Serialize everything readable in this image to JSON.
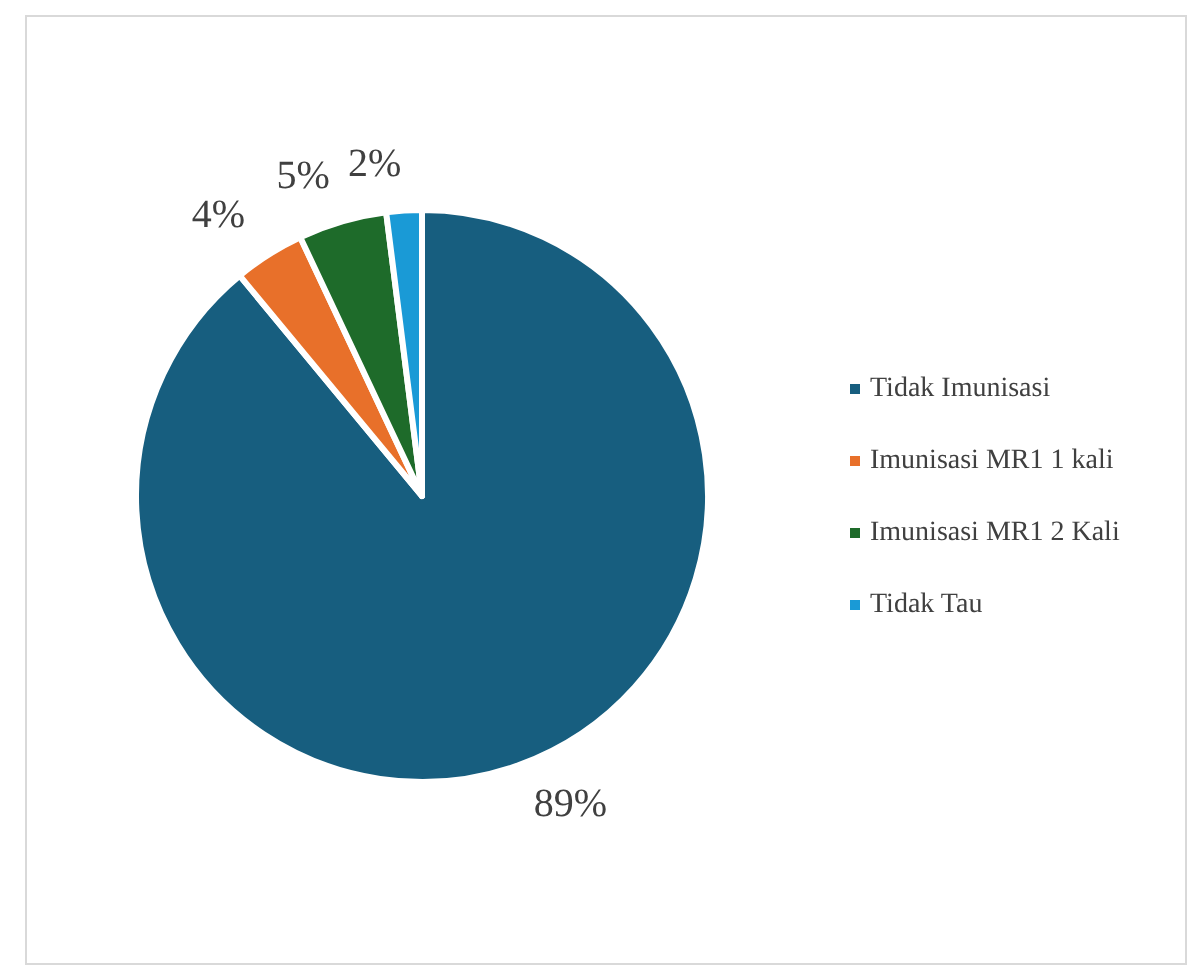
{
  "chart_data": {
    "type": "pie",
    "categories": [
      "Tidak Imunisasi",
      "Imunisasi MR1 1 kali",
      "Imunisasi MR1 2 Kali",
      "Tidak Tau"
    ],
    "values": [
      89,
      4,
      5,
      2
    ],
    "colors": [
      "#175e7f",
      "#e8702a",
      "#1e6b2a",
      "#1a9ad6"
    ],
    "value_labels": [
      "89%",
      "4%",
      "5%",
      "2%"
    ],
    "legend": "right"
  }
}
